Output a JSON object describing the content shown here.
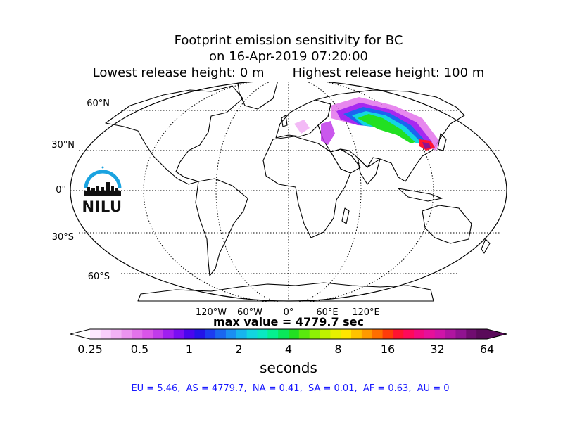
{
  "title": {
    "line1": "Footprint emission sensitivity for BC",
    "line2": "on 16-Apr-2019 07:20:00",
    "line3": "Lowest release height: 0 m       Highest release height: 100 m"
  },
  "map": {
    "projection": "Robinson",
    "lat_labels": [
      "60°N",
      "30°N",
      "0°",
      "30°S",
      "60°S"
    ],
    "lon_labels": [
      "120°W",
      "60°W",
      "0°",
      "60°E",
      "120°E"
    ],
    "logo_text": "NILU",
    "land_outline_color": "#000000",
    "graticule_style": "dotted"
  },
  "max_value_text": "max value = 4779.7 sec",
  "colorbar": {
    "scale": "log",
    "ticks": [
      "0.25",
      "0.5",
      "1",
      "2",
      "4",
      "8",
      "16",
      "32",
      "64"
    ],
    "label": "seconds",
    "extend": "both",
    "colors": [
      "#fde7ff",
      "#f9cffc",
      "#f2b2f5",
      "#ec94f0",
      "#e373eb",
      "#d955e8",
      "#c13bea",
      "#a01ff0",
      "#7a0ef2",
      "#4a06ee",
      "#2414e8",
      "#1d3cf0",
      "#1a66f0",
      "#1a8ef2",
      "#17b5ee",
      "#12d6e0",
      "#0ae8c2",
      "#05f090",
      "#0ae85a",
      "#22e022",
      "#5ae80e",
      "#8ef005",
      "#bff200",
      "#e6f000",
      "#ffe600",
      "#ffc200",
      "#ff9a00",
      "#ff6e00",
      "#ff3c0a",
      "#ff1430",
      "#ff0a5a",
      "#f20a80",
      "#e6109a",
      "#d014a8",
      "#b014a0",
      "#901290",
      "#700c70",
      "#5a0a5a"
    ]
  },
  "stats": "EU = 5.46,  AS = 4779.7,  NA = 0.41,  SA = 0.01,  AF = 0.63,  AU = 0",
  "stats_color": "#1a1aff"
}
